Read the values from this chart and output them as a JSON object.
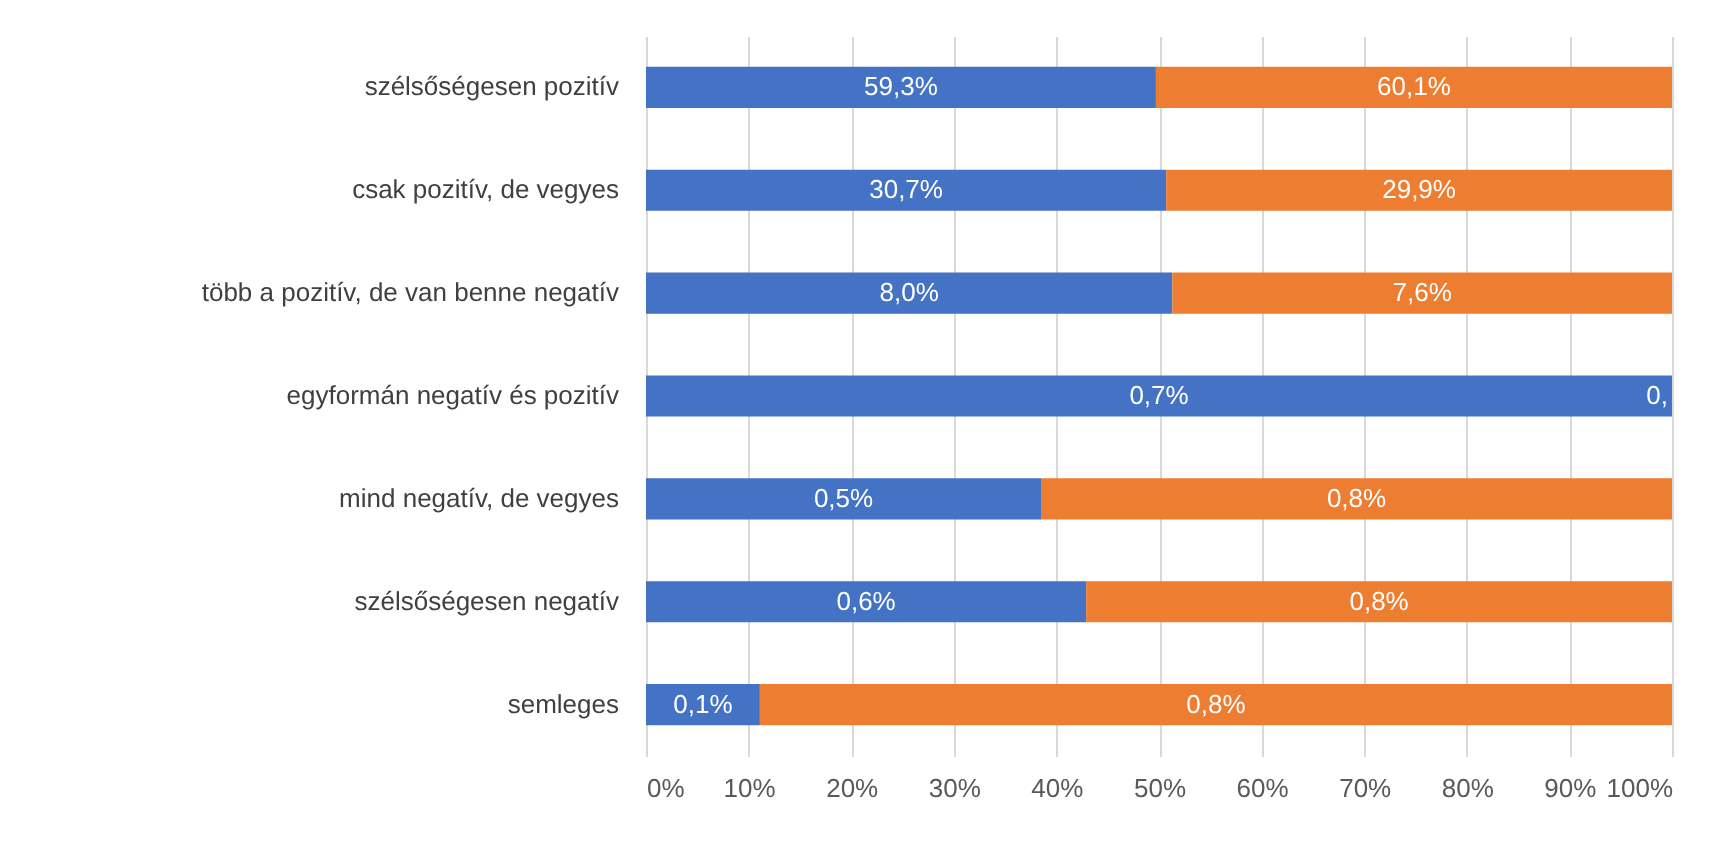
{
  "chart_data": {
    "type": "bar",
    "orientation": "horizontal",
    "stacked": true,
    "categories": [
      "szélsőségesen pozitív",
      "csak pozitív, de vegyes",
      "több a pozitív, de van benne negatív",
      "egyformán negatív és pozitív",
      "mind negatív, de vegyes",
      "szélsőségesen negatív",
      "semleges"
    ],
    "series": [
      {
        "color": "#4472c4",
        "values": [
          49.7,
          50.7,
          51.3,
          100,
          38.5,
          42.9,
          11.1
        ]
      },
      {
        "color": "#ed7d31",
        "values": [
          50.3,
          49.3,
          48.7,
          0,
          61.5,
          57.1,
          88.9
        ]
      }
    ],
    "annotations": [
      "59,3%",
      "60,1%",
      "30,7%",
      "29,9%",
      "8,0%",
      "7,6%",
      "0,7%",
      "0,",
      "0,5%",
      "0,8%",
      "0,6%",
      "0,8%",
      "0,1%",
      "0,8%"
    ],
    "xlim": [
      0,
      100
    ],
    "xticks": [
      {
        "value": 0,
        "label": "0%"
      },
      {
        "value": 10,
        "label": "10%"
      },
      {
        "value": 20,
        "label": "20%"
      },
      {
        "value": 30,
        "label": "30%"
      },
      {
        "value": 40,
        "label": "40%"
      },
      {
        "value": 50,
        "label": "50%"
      },
      {
        "value": 60,
        "label": "60%"
      },
      {
        "value": 70,
        "label": "70%"
      },
      {
        "value": 80,
        "label": "80%"
      },
      {
        "value": 90,
        "label": "90%"
      },
      {
        "value": 100,
        "label": "100%"
      }
    ],
    "grid": "x"
  }
}
